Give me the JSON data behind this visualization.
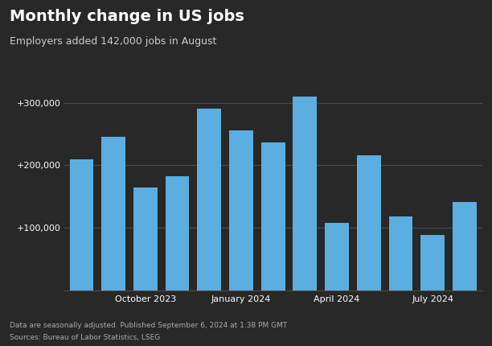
{
  "title": "Monthly change in US jobs",
  "subtitle": "Employers added 142,000 jobs in August",
  "footnote1": "Data are seasonally adjusted. Published September 6, 2024 at 1:38 PM GMT",
  "footnote2": "Sources: Bureau of Labor Statistics, LSEG",
  "background_color": "#282828",
  "bar_color": "#5baee0",
  "text_color": "#ffffff",
  "subtitle_color": "#cccccc",
  "footnote_color": "#aaaaaa",
  "x_tick_labels": [
    "October 2023",
    "January 2024",
    "April 2024",
    "July 2024"
  ],
  "x_tick_positions": [
    2,
    5,
    8,
    11
  ],
  "values": [
    210000,
    246000,
    165000,
    182000,
    290000,
    256000,
    236000,
    310000,
    108000,
    216000,
    118000,
    89000,
    142000
  ],
  "ylim": [
    0,
    370000
  ],
  "yticks": [
    100000,
    200000,
    300000
  ],
  "ytick_labels": [
    "+100,000",
    "+200,000",
    "+300,000"
  ],
  "grid_color": "#555555",
  "title_fontsize": 14,
  "subtitle_fontsize": 9,
  "tick_fontsize": 8,
  "footnote_fontsize": 6.5
}
